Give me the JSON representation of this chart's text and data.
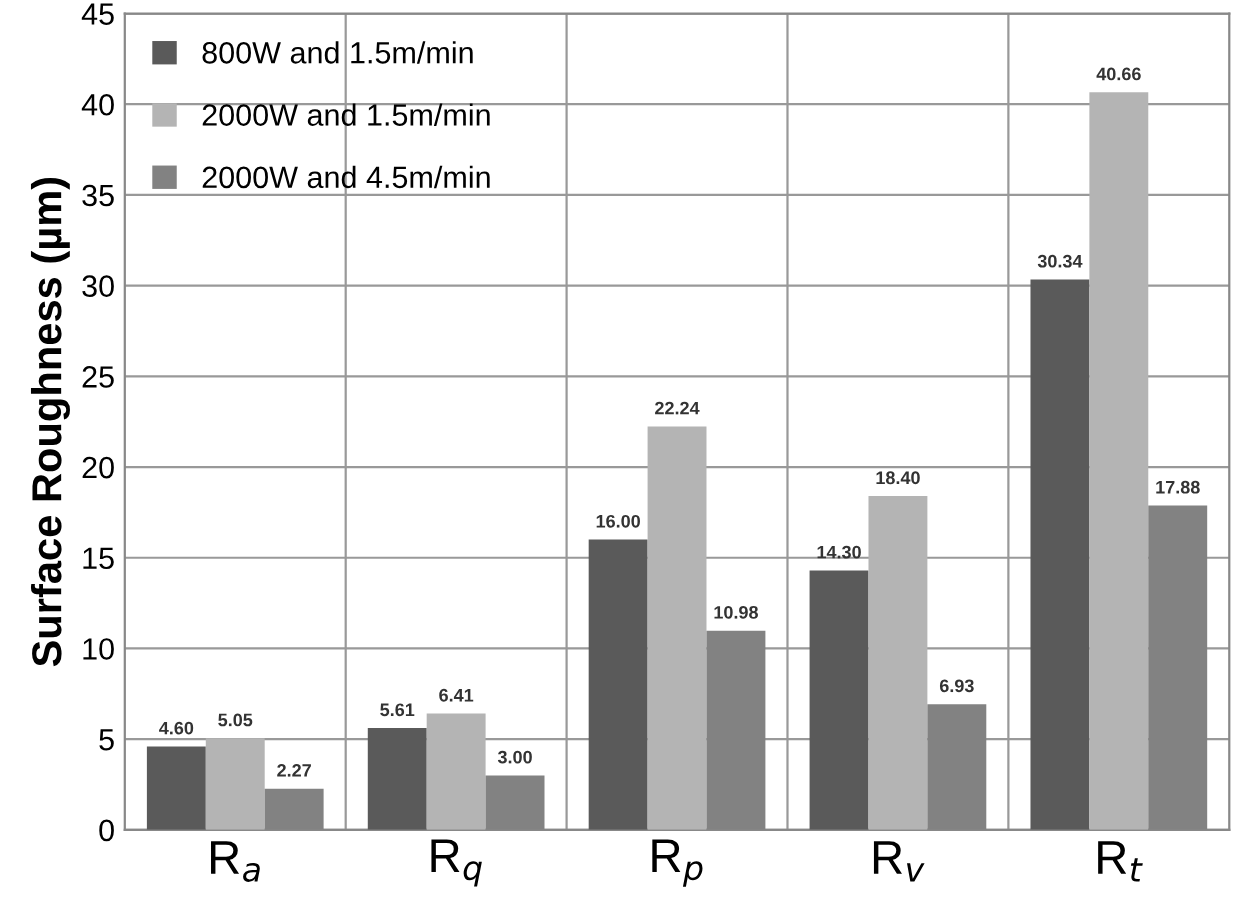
{
  "chart_data": {
    "type": "bar",
    "ylabel": "Surface Roughness (µm)",
    "categories": [
      "R$_{a}$",
      "R$_{q}$",
      "R$_{p}$",
      "R$_{v}$",
      "R$_{t}$"
    ],
    "series": [
      {
        "name": "800W and 1.5m/min",
        "color": "#5a5a5a",
        "values": [
          4.6,
          5.61,
          16.0,
          14.3,
          30.34
        ],
        "value_labels": [
          "4.60",
          "5.61",
          "16.00",
          "14.30",
          "30.34"
        ]
      },
      {
        "name": "2000W and 1.5m/min",
        "color": "#b4b4b4",
        "values": [
          5.05,
          6.41,
          22.24,
          18.4,
          40.66
        ],
        "value_labels": [
          "5.05",
          "6.41",
          "22.24",
          "18.40",
          "40.66"
        ]
      },
      {
        "name": "2000W and 4.5m/min",
        "color": "#828282",
        "values": [
          2.27,
          3.0,
          10.98,
          6.93,
          17.88
        ],
        "value_labels": [
          "2.27",
          "3.00",
          "10.98",
          "6.93",
          "17.88"
        ]
      }
    ],
    "ylim": [
      0,
      45
    ],
    "yticks": [
      0,
      5,
      10,
      15,
      20,
      25,
      30,
      35,
      40,
      45
    ],
    "grid": true,
    "legend": "top left"
  }
}
